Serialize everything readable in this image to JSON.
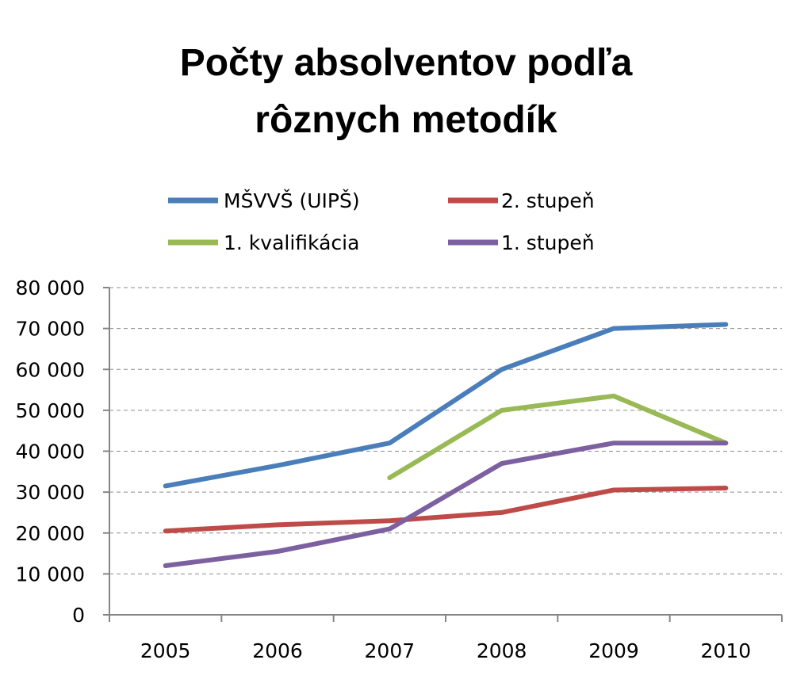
{
  "chart_data": {
    "type": "line",
    "title_lines": [
      "Počty absolventov podľa",
      "rôznych metodík"
    ],
    "x": [
      "2005",
      "2006",
      "2007",
      "2008",
      "2009",
      "2010"
    ],
    "y_ticks": [
      "0",
      "10 000",
      "20 000",
      "30 000",
      "40 000",
      "50 000",
      "60 000",
      "70 000",
      "80 000"
    ],
    "ylim": [
      0,
      80000
    ],
    "grid": true,
    "legend_position": "top",
    "series": [
      {
        "name": "MŠVVŠ (UIPŠ)",
        "color": "#4a7ebb",
        "values": [
          31500,
          36500,
          42000,
          60000,
          70000,
          71000
        ]
      },
      {
        "name": "2. stupeň",
        "color": "#be4b48",
        "values": [
          20500,
          22000,
          23000,
          25000,
          30500,
          31000
        ]
      },
      {
        "name": "1. kvalifikácia",
        "color": "#98b954",
        "values": [
          null,
          null,
          33500,
          50000,
          53500,
          42000
        ]
      },
      {
        "name": "1. stupeň",
        "color": "#7d60a0",
        "values": [
          12000,
          15500,
          21000,
          37000,
          42000,
          42000
        ]
      }
    ]
  }
}
